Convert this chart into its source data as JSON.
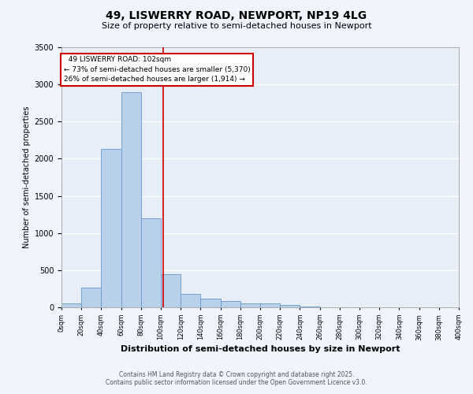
{
  "title_line1": "49, LISWERRY ROAD, NEWPORT, NP19 4LG",
  "title_line2": "Size of property relative to semi-detached houses in Newport",
  "xlabel": "Distribution of semi-detached houses by size in Newport",
  "ylabel": "Number of semi-detached properties",
  "property_size": 102,
  "annotation_title": "49 LISWERRY ROAD: 102sqm",
  "annotation_line2": "← 73% of semi-detached houses are smaller (5,370)",
  "annotation_line3": "26% of semi-detached houses are larger (1,914) →",
  "bin_edges": [
    0,
    20,
    40,
    60,
    80,
    100,
    120,
    140,
    160,
    180,
    200,
    220,
    240,
    260,
    280,
    300,
    320,
    340,
    360,
    380,
    400
  ],
  "bar_heights": [
    50,
    270,
    2130,
    2900,
    1200,
    450,
    180,
    120,
    80,
    55,
    55,
    30,
    15,
    5,
    3,
    2,
    1,
    0,
    0,
    0
  ],
  "bar_color": "#b8d0ea",
  "bar_edgecolor": "#6699cc",
  "background_color": "#e8eef8",
  "grid_color": "#ffffff",
  "vline_color": "#cc0000",
  "annotation_box_edgecolor": "#cc0000",
  "ylim": [
    0,
    3500
  ],
  "yticks": [
    0,
    500,
    1000,
    1500,
    2000,
    2500,
    3000,
    3500
  ],
  "footnote_line1": "Contains HM Land Registry data © Crown copyright and database right 2025.",
  "footnote_line2": "Contains public sector information licensed under the Open Government Licence v3.0."
}
